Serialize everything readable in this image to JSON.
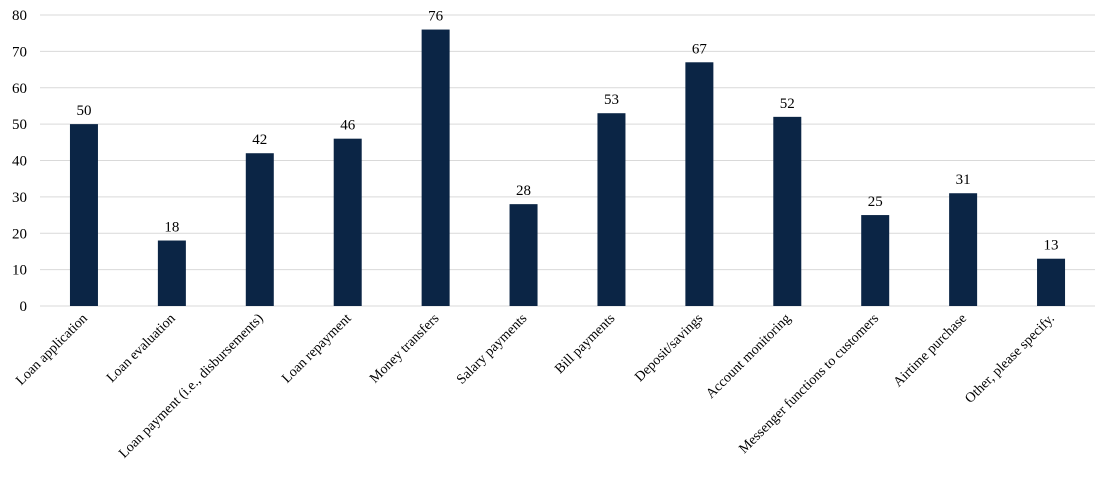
{
  "chart_data": {
    "type": "bar",
    "title": "",
    "xlabel": "",
    "ylabel": "",
    "ylim": [
      0,
      80
    ],
    "yticks": [
      0,
      10,
      20,
      30,
      40,
      50,
      60,
      70,
      80
    ],
    "grid": true,
    "bar_color": "#0b2545",
    "categories": [
      "Loan application",
      "Loan evaluation",
      "Loan payment (i.e., disbursements)",
      "Loan repayment",
      "Money transfers",
      "Salary payments",
      "Bill payments",
      "Deposit/savings",
      "Account monitoring",
      "Messenger functions to customers",
      "Airtime purchase",
      "Other, please specify."
    ],
    "values": [
      50,
      18,
      42,
      46,
      76,
      28,
      53,
      67,
      52,
      25,
      31,
      13
    ]
  }
}
